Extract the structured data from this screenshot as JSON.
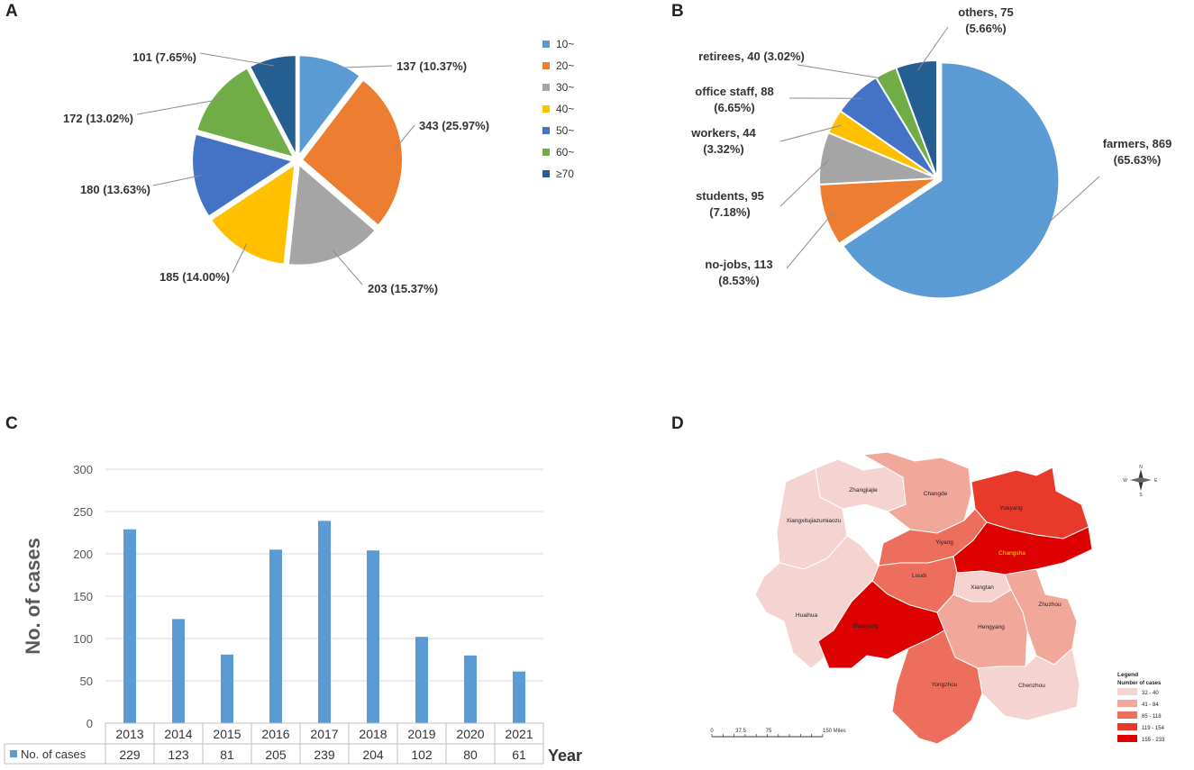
{
  "panels": {
    "a": "A",
    "b": "B",
    "c": "C",
    "d": "D"
  },
  "chart_data": [
    {
      "id": "A",
      "type": "pie",
      "categories": [
        "10~",
        "20~",
        "30~",
        "40~",
        "50~",
        "60~",
        "≥70"
      ],
      "values": [
        137,
        343,
        203,
        185,
        180,
        172,
        101
      ],
      "labels": [
        "137 (10.37%)",
        "343 (25.97%)",
        "203 (15.37%)",
        "185 (14.00%)",
        "180 (13.63%)",
        "172 (13.02%)",
        "101 (7.65%)"
      ],
      "colors": [
        "#5b9bd5",
        "#ed7d31",
        "#a5a5a5",
        "#ffc000",
        "#4472c4",
        "#70ad47",
        "#255e91"
      ],
      "legend": "right"
    },
    {
      "id": "B",
      "type": "pie",
      "categories": [
        "farmers",
        "no-jobs",
        "students",
        "workers",
        "office staff",
        "retirees",
        "others"
      ],
      "values": [
        869,
        113,
        95,
        44,
        88,
        40,
        75
      ],
      "labels": [
        [
          "farmers, 869",
          "(65.63%)"
        ],
        [
          "no-jobs, 113",
          "(8.53%)"
        ],
        [
          "students, 95",
          "(7.18%)"
        ],
        [
          "workers, 44",
          "(3.32%)"
        ],
        [
          "office staff, 88",
          "(6.65%)"
        ],
        [
          "retirees, 40 (3.02%)"
        ],
        [
          "others, 75",
          "(5.66%)"
        ]
      ],
      "colors": [
        "#5b9bd5",
        "#ed7d31",
        "#a5a5a5",
        "#ffc000",
        "#4472c4",
        "#70ad47",
        "#255e91"
      ]
    },
    {
      "id": "C",
      "type": "bar",
      "categories": [
        "2013",
        "2014",
        "2015",
        "2016",
        "2017",
        "2018",
        "2019",
        "2020",
        "2021"
      ],
      "series": [
        {
          "name": "No. of cases",
          "values": [
            229,
            123,
            81,
            205,
            239,
            204,
            102,
            80,
            61
          ]
        }
      ],
      "ylabel": "No. of cases",
      "xlabel": "Year",
      "ylim": [
        0,
        300
      ],
      "yticks": [
        0,
        50,
        100,
        150,
        200,
        250,
        300
      ],
      "grid": true,
      "color": "#5b9bd5",
      "data_table": true
    }
  ],
  "map": {
    "regions": [
      {
        "name": "Zhangjiajie",
        "bin": 0
      },
      {
        "name": "Changde",
        "bin": 1
      },
      {
        "name": "Yueyang",
        "bin": 3
      },
      {
        "name": "Xiangxitujiazumiaozu",
        "bin": 0
      },
      {
        "name": "Yiyang",
        "bin": 2
      },
      {
        "name": "Changsha",
        "bin": 4
      },
      {
        "name": "Loudi",
        "bin": 2
      },
      {
        "name": "Xiangtan",
        "bin": 0
      },
      {
        "name": "Huaihua",
        "bin": 0
      },
      {
        "name": "Shaoyang",
        "bin": 4
      },
      {
        "name": "Zhuzhou",
        "bin": 1
      },
      {
        "name": "Hengyang",
        "bin": 1
      },
      {
        "name": "Yongzhou",
        "bin": 2
      },
      {
        "name": "Chenzhou",
        "bin": 0
      }
    ],
    "legend_title": "Legend",
    "legend_subtitle": "Number of cases",
    "legend_bins": [
      {
        "label": "32 - 40",
        "color": "#f4d3d1"
      },
      {
        "label": "41 - 84",
        "color": "#f2a79b"
      },
      {
        "label": "85 - 118",
        "color": "#ee6e5e"
      },
      {
        "label": "119 - 154",
        "color": "#e8392b"
      },
      {
        "label": "155 - 233",
        "color": "#dd0000"
      }
    ],
    "scale_labels": [
      "0",
      "37.5",
      "75",
      "150 Miles"
    ],
    "compass": {
      "n": "N",
      "s": "S",
      "e": "E",
      "w": "W"
    }
  }
}
